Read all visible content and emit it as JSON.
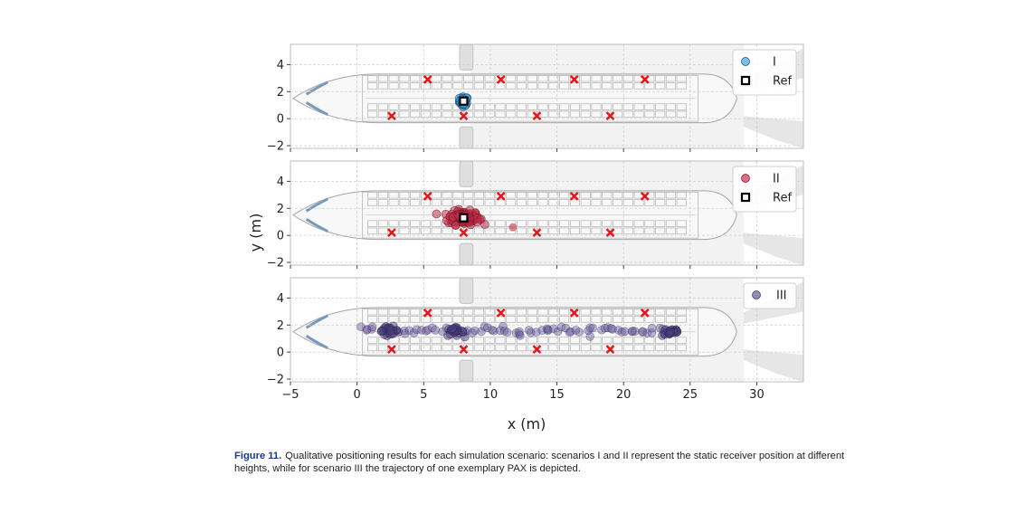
{
  "figure": {
    "xlabel": "x (m)",
    "ylabel": "y (m)",
    "x_ticks": [
      "−5",
      "0",
      "5",
      "10",
      "15",
      "20",
      "25",
      "30"
    ],
    "y_ticks": [
      "4",
      "2",
      "0",
      "−2"
    ]
  },
  "caption": {
    "label": "Figure 11.",
    "text": "Qualitative positioning results for each simulation scenario: scenarios I and II represent the static receiver position at different heights, while for scenario III the trajectory of one exemplary PAX is depicted."
  },
  "colors": {
    "scenario_I": "#4aa3d8",
    "scenario_II": "#c0334d",
    "scenario_III": "#6a5a9a",
    "anchor": "#e8141a",
    "ref": "#000000",
    "grid": "#cfcfcf",
    "panel_bg": "#ffffff"
  },
  "chart_data": [
    {
      "type": "scatter",
      "panel": 1,
      "xlim": [
        -5,
        33.5
      ],
      "ylim": [
        -2.2,
        5.5
      ],
      "grid": true,
      "legend_position": "top-right",
      "anchors": [
        [
          2.6,
          0.2
        ],
        [
          5.3,
          2.9
        ],
        [
          8.0,
          0.2
        ],
        [
          10.8,
          2.9
        ],
        [
          13.5,
          0.2
        ],
        [
          16.3,
          2.9
        ],
        [
          19.0,
          0.2
        ],
        [
          21.6,
          2.9
        ]
      ],
      "ref": [
        8.0,
        1.3
      ],
      "series": [
        {
          "name": "I",
          "legend": "I",
          "cluster": {
            "center": [
              8.0,
              1.3
            ],
            "spread": [
              0.35,
              0.35
            ],
            "count": 60
          }
        }
      ],
      "ref_label": "Ref"
    },
    {
      "type": "scatter",
      "panel": 2,
      "xlim": [
        -5,
        33.5
      ],
      "ylim": [
        -2.2,
        5.5
      ],
      "grid": true,
      "legend_position": "top-right",
      "anchors": [
        [
          2.6,
          0.2
        ],
        [
          5.3,
          2.9
        ],
        [
          8.0,
          0.2
        ],
        [
          10.8,
          2.9
        ],
        [
          13.5,
          0.2
        ],
        [
          16.3,
          2.9
        ],
        [
          19.0,
          0.2
        ],
        [
          21.6,
          2.9
        ]
      ],
      "ref": [
        8.0,
        1.3
      ],
      "series": [
        {
          "name": "II",
          "legend": "II",
          "cluster": {
            "center": [
              8.0,
              1.3
            ],
            "spread": [
              1.3,
              0.55
            ],
            "count": 140
          },
          "outlier": [
            11.7,
            0.6
          ]
        }
      ],
      "ref_label": "Ref"
    },
    {
      "type": "scatter",
      "panel": 3,
      "xlim": [
        -5,
        33.5
      ],
      "ylim": [
        -2.2,
        5.5
      ],
      "grid": true,
      "legend_position": "top-right",
      "anchors": [
        [
          2.6,
          0.2
        ],
        [
          5.3,
          2.9
        ],
        [
          8.0,
          0.2
        ],
        [
          10.8,
          2.9
        ],
        [
          13.5,
          0.2
        ],
        [
          16.3,
          2.9
        ],
        [
          19.0,
          0.2
        ],
        [
          21.6,
          2.9
        ]
      ],
      "series": [
        {
          "name": "III",
          "legend": "III",
          "trajectory_x_range": [
            0.3,
            23.8
          ],
          "trajectory_y_mean": 1.6,
          "dense_clusters": [
            [
              2.4,
              1.6
            ],
            [
              7.3,
              1.5
            ],
            [
              23.6,
              1.5
            ]
          ]
        }
      ]
    }
  ]
}
